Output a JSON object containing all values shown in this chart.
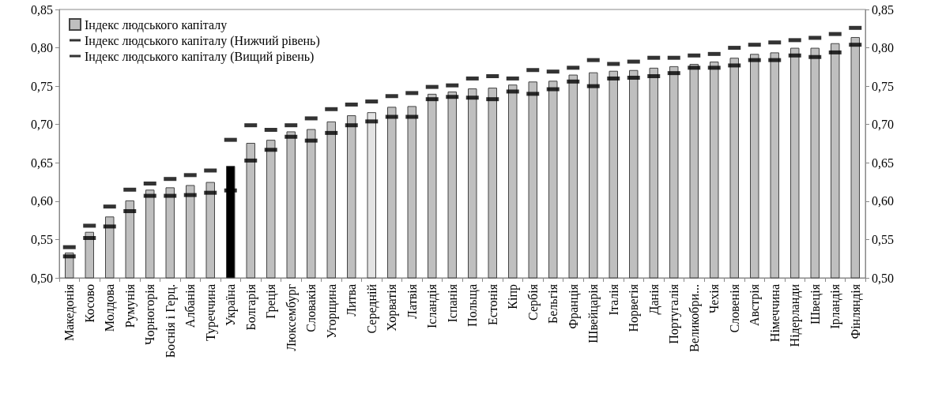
{
  "chart_data": {
    "type": "bar",
    "categories": [
      "Македонія",
      "Косово",
      "Молдова",
      "Румунія",
      "Чорногорія",
      "Боснія і Герц.",
      "Албанія",
      "Туреччина",
      "Україна",
      "Болгарія",
      "Греція",
      "Люксембург",
      "Словакія",
      "Угорщина",
      "Литва",
      "Середній",
      "Хорватія",
      "Латвія",
      "Ісландія",
      "Іспанія",
      "Польща",
      "Естонія",
      "Кіпр",
      "Сербія",
      "Бельгія",
      "Франція",
      "Швейцарія",
      "Італія",
      "Норвегія",
      "Данія",
      "Португалія",
      "Великобри...",
      "Чехія",
      "Словенія",
      "Австрія",
      "Німеччина",
      "Нідерланди",
      "Швеція",
      "Ірландія",
      "Фінляндія"
    ],
    "series": [
      {
        "name": "Індекс людського капіталу",
        "type": "bar",
        "color": "#bfbfbf",
        "colors": [
          "#bfbfbf",
          "#bfbfbf",
          "#bfbfbf",
          "#bfbfbf",
          "#bfbfbf",
          "#bfbfbf",
          "#bfbfbf",
          "#bfbfbf",
          "#000000",
          "#bfbfbf",
          "#bfbfbf",
          "#bfbfbf",
          "#bfbfbf",
          "#bfbfbf",
          "#bfbfbf",
          "#e3e3e3",
          "#bfbfbf",
          "#bfbfbf",
          "#bfbfbf",
          "#bfbfbf",
          "#bfbfbf",
          "#bfbfbf",
          "#bfbfbf",
          "#bfbfbf",
          "#bfbfbf",
          "#bfbfbf",
          "#bfbfbf",
          "#bfbfbf",
          "#bfbfbf",
          "#bfbfbf",
          "#bfbfbf",
          "#bfbfbf",
          "#bfbfbf",
          "#bfbfbf",
          "#bfbfbf",
          "#bfbfbf",
          "#bfbfbf",
          "#bfbfbf",
          "#bfbfbf",
          "#bfbfbf"
        ],
        "values": [
          0.533,
          0.56,
          0.58,
          0.601,
          0.615,
          0.618,
          0.621,
          0.625,
          0.646,
          0.676,
          0.68,
          0.691,
          0.694,
          0.704,
          0.712,
          0.716,
          0.723,
          0.724,
          0.74,
          0.743,
          0.747,
          0.748,
          0.752,
          0.756,
          0.757,
          0.765,
          0.768,
          0.77,
          0.771,
          0.774,
          0.776,
          0.779,
          0.782,
          0.787,
          0.792,
          0.794,
          0.8,
          0.8,
          0.806,
          0.814
        ]
      },
      {
        "name": "Індекс людського капіталу (Нижчий рівень)",
        "type": "scatter",
        "color": "#000000",
        "values": [
          0.528,
          0.552,
          0.567,
          0.587,
          0.607,
          0.607,
          0.608,
          0.611,
          0.614,
          0.653,
          0.667,
          0.684,
          0.679,
          0.689,
          0.699,
          0.704,
          0.71,
          0.71,
          0.733,
          0.736,
          0.735,
          0.733,
          0.743,
          0.74,
          0.746,
          0.756,
          0.75,
          0.76,
          0.761,
          0.763,
          0.767,
          0.774,
          0.774,
          0.777,
          0.784,
          0.784,
          0.79,
          0.788,
          0.794,
          0.804
        ]
      },
      {
        "name": "Індекс людського капіталу (Вищий рівень)",
        "type": "scatter",
        "color": "#000000",
        "values": [
          0.54,
          0.568,
          0.593,
          0.615,
          0.623,
          0.629,
          0.634,
          0.64,
          0.68,
          0.699,
          0.693,
          0.699,
          0.708,
          0.72,
          0.726,
          0.73,
          0.737,
          0.741,
          0.749,
          0.751,
          0.76,
          0.763,
          0.76,
          0.771,
          0.769,
          0.774,
          0.784,
          0.779,
          0.782,
          0.787,
          0.787,
          0.79,
          0.792,
          0.8,
          0.804,
          0.807,
          0.81,
          0.813,
          0.818,
          0.826
        ]
      }
    ],
    "ylim": [
      0.5,
      0.85
    ],
    "yticks": [
      {
        "value": 0.5,
        "label": "0,50"
      },
      {
        "value": 0.55,
        "label": "0,55"
      },
      {
        "value": 0.6,
        "label": "0,60"
      },
      {
        "value": 0.65,
        "label": "0,65"
      },
      {
        "value": 0.7,
        "label": "0,70"
      },
      {
        "value": 0.75,
        "label": "0,75"
      },
      {
        "value": 0.8,
        "label": "0,80"
      },
      {
        "value": 0.85,
        "label": "0,85"
      }
    ],
    "y2lim": [
      0.5,
      0.85
    ],
    "y2ticks": [
      {
        "value": 0.5,
        "label": "0,50"
      },
      {
        "value": 0.55,
        "label": "0,55"
      },
      {
        "value": 0.6,
        "label": "0,60"
      },
      {
        "value": 0.65,
        "label": "0,65"
      },
      {
        "value": 0.7,
        "label": "0,70"
      },
      {
        "value": 0.75,
        "label": "0,75"
      },
      {
        "value": 0.8,
        "label": "0,80"
      },
      {
        "value": 0.85,
        "label": "0,85"
      }
    ],
    "grid": false,
    "legend": "top left"
  }
}
